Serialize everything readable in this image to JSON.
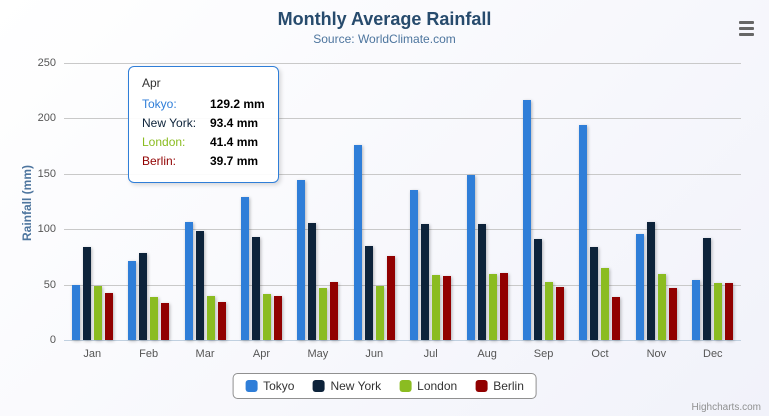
{
  "chart": {
    "title": "Monthly Average Rainfall",
    "subtitle": "Source: WorldClimate.com",
    "credits": "Highcharts.com"
  },
  "chart_data": {
    "type": "bar",
    "title": "Monthly Average Rainfall",
    "subtitle": "Source: WorldClimate.com",
    "xlabel": "",
    "ylabel": "Rainfall (mm)",
    "ylim": [
      0,
      250
    ],
    "yticks": [
      0,
      50,
      100,
      150,
      200,
      250
    ],
    "grid": true,
    "legend_position": "bottom",
    "categories": [
      "Jan",
      "Feb",
      "Mar",
      "Apr",
      "May",
      "Jun",
      "Jul",
      "Aug",
      "Sep",
      "Oct",
      "Nov",
      "Dec"
    ],
    "series": [
      {
        "name": "Tokyo",
        "color": "#2f7ed8",
        "values": [
          49.9,
          71.5,
          106.4,
          129.2,
          144.0,
          176.0,
          135.6,
          148.5,
          216.4,
          194.1,
          95.6,
          54.4
        ]
      },
      {
        "name": "New York",
        "color": "#0d233a",
        "values": [
          83.6,
          78.8,
          98.5,
          93.4,
          106.0,
          84.5,
          105.0,
          104.3,
          91.2,
          83.5,
          106.6,
          92.3
        ]
      },
      {
        "name": "London",
        "color": "#8bbc21",
        "values": [
          48.9,
          38.8,
          39.3,
          41.4,
          47.0,
          48.3,
          59.0,
          59.6,
          52.4,
          65.2,
          59.3,
          51.2
        ]
      },
      {
        "name": "Berlin",
        "color": "#910000",
        "values": [
          42.4,
          33.2,
          34.5,
          39.7,
          52.6,
          75.5,
          57.4,
          60.4,
          47.6,
          39.1,
          46.8,
          51.1
        ]
      }
    ]
  },
  "tooltip": {
    "header": "Apr",
    "rows": [
      {
        "name": "Tokyo:",
        "value": "129.2 mm",
        "color": "#2f7ed8"
      },
      {
        "name": "New York:",
        "value": "93.4 mm",
        "color": "#0d233a"
      },
      {
        "name": "London:",
        "value": "41.4 mm",
        "color": "#8bbc21"
      },
      {
        "name": "Berlin:",
        "value": "39.7 mm",
        "color": "#910000"
      }
    ]
  }
}
